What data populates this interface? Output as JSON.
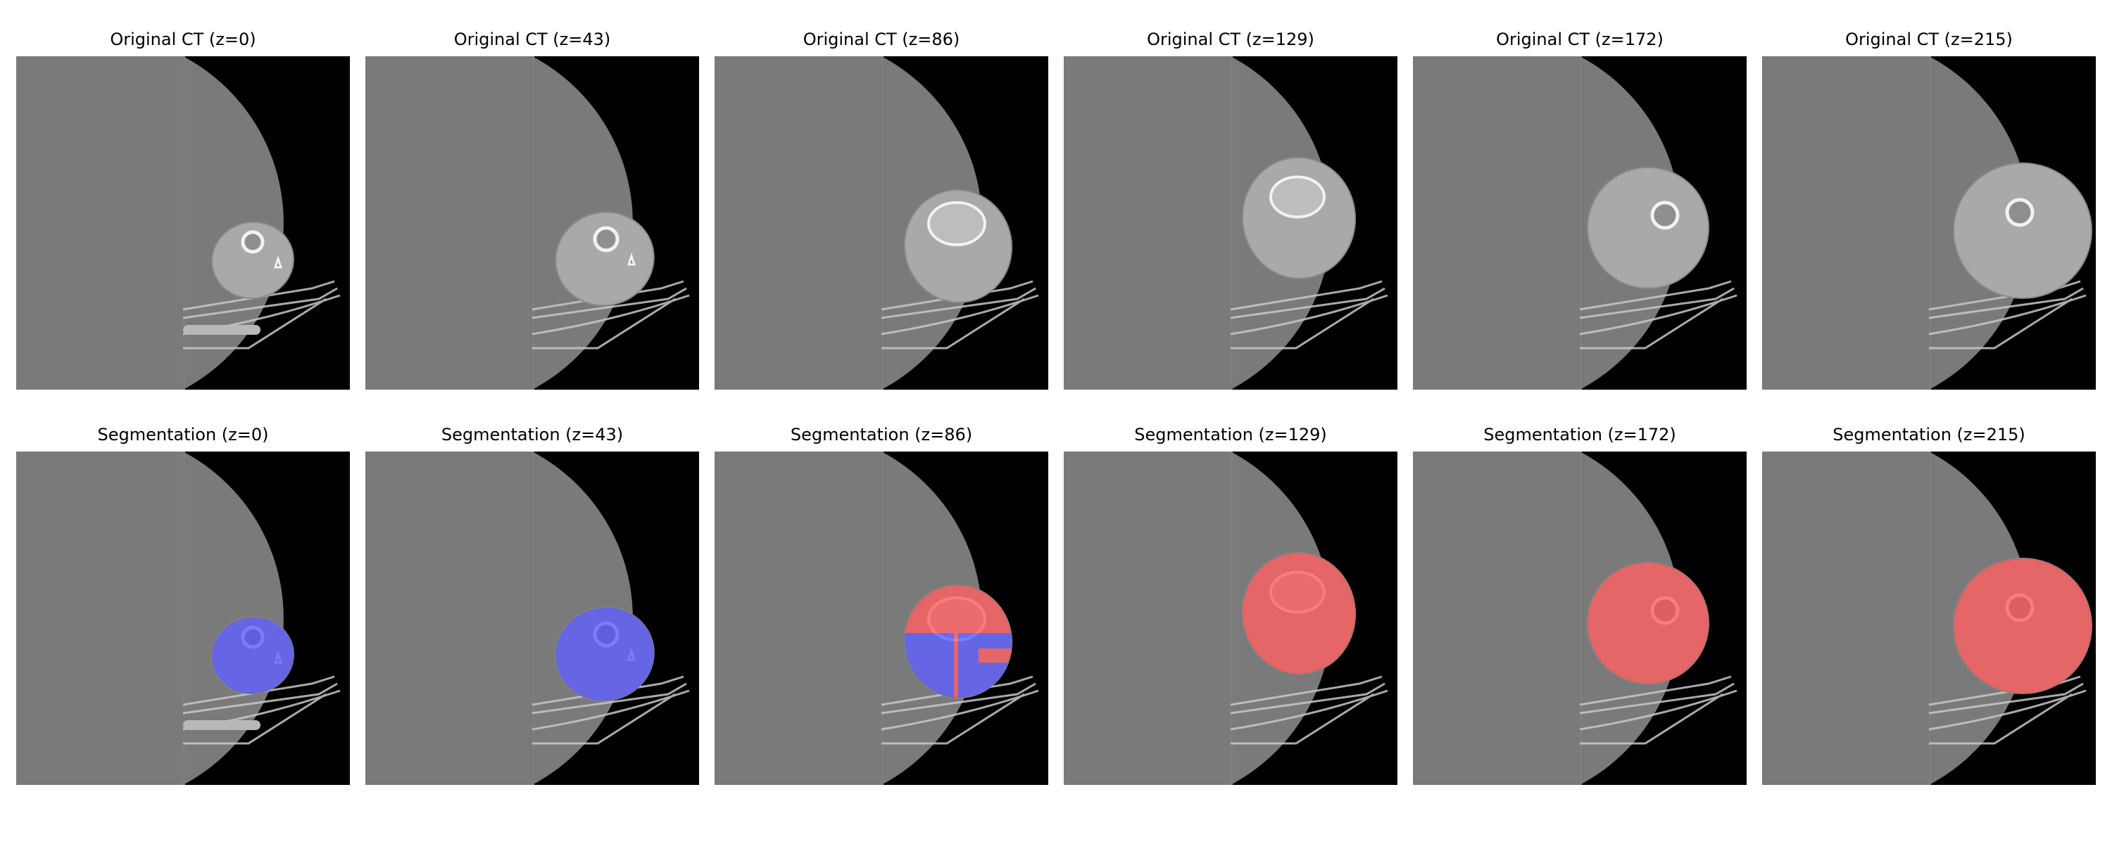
{
  "rows": [
    {
      "kind": "original",
      "panels": [
        {
          "title": "Original CT (z=0)",
          "z": 0
        },
        {
          "title": "Original CT (z=43)",
          "z": 43
        },
        {
          "title": "Original CT (z=86)",
          "z": 86
        },
        {
          "title": "Original CT (z=129)",
          "z": 129
        },
        {
          "title": "Original CT (z=172)",
          "z": 172
        },
        {
          "title": "Original CT (z=215)",
          "z": 215
        }
      ]
    },
    {
      "kind": "segmentation",
      "panels": [
        {
          "title": "Segmentation (z=0)",
          "z": 0,
          "label": "blue"
        },
        {
          "title": "Segmentation (z=43)",
          "z": 43,
          "label": "blue"
        },
        {
          "title": "Segmentation (z=86)",
          "z": 86,
          "label": "mixed"
        },
        {
          "title": "Segmentation (z=129)",
          "z": 129,
          "label": "red"
        },
        {
          "title": "Segmentation (z=172)",
          "z": 172,
          "label": "red"
        },
        {
          "title": "Segmentation (z=215)",
          "z": 215,
          "label": "red"
        }
      ]
    }
  ],
  "colors": {
    "background": "#000000",
    "field": "#7a7a7a",
    "tissue": "#a9a9a9",
    "bone": "#f2f2f2",
    "label_blue": "#4a4aff",
    "label_red": "#ff4a4a"
  }
}
